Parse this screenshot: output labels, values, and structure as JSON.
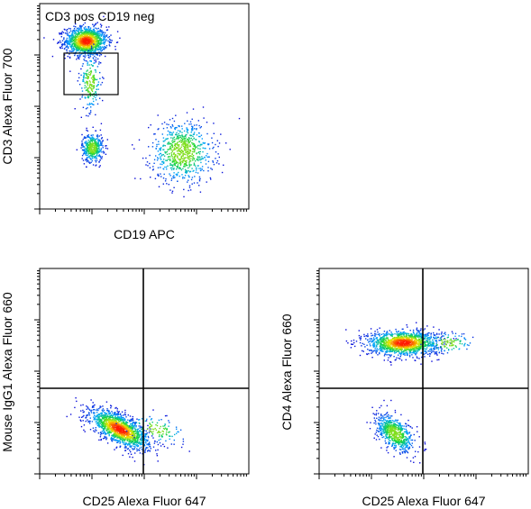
{
  "chart_data": [
    {
      "type": "scatter",
      "plot_kind": "flow-cytometry-density-dot-plot",
      "title": "CD3 pos CD19 neg",
      "xlabel": "CD19 APC",
      "ylabel": "CD3 Alexa Fluor 700",
      "axis_scale": "log",
      "gate": {
        "type": "rectangle",
        "label": "CD3 pos CD19 neg"
      },
      "populations": [
        {
          "x": 0.22,
          "y": 0.82,
          "n": 1300,
          "sx": 0.05,
          "sy": 0.035,
          "hot": true
        },
        {
          "x": 0.24,
          "y": 0.62,
          "n": 220,
          "sx": 0.025,
          "sy": 0.07,
          "hot": false
        },
        {
          "x": 0.25,
          "y": 0.3,
          "n": 420,
          "sx": 0.025,
          "sy": 0.035,
          "hot": false
        },
        {
          "x": 0.68,
          "y": 0.28,
          "n": 750,
          "sx": 0.075,
          "sy": 0.075,
          "hot": false
        }
      ]
    },
    {
      "type": "scatter",
      "plot_kind": "flow-cytometry-density-dot-plot",
      "xlabel": "CD25 Alexa Fluor 647",
      "ylabel": "Mouse IgG1 Alexa Fluor 660",
      "axis_scale": "log",
      "quadrant_gate": true,
      "populations": [
        {
          "x": 0.38,
          "y": 0.22,
          "n": 1500,
          "sx": 0.07,
          "sy": 0.035,
          "tilt": -0.45,
          "hot": true
        },
        {
          "x": 0.55,
          "y": 0.22,
          "n": 120,
          "sx": 0.07,
          "sy": 0.03,
          "tilt": -0.2,
          "hot": false
        }
      ]
    },
    {
      "type": "scatter",
      "plot_kind": "flow-cytometry-density-dot-plot",
      "xlabel": "CD25 Alexa Fluor 647",
      "ylabel": "CD4 Alexa Fluor 660",
      "axis_scale": "log",
      "quadrant_gate": true,
      "populations": [
        {
          "x": 0.4,
          "y": 0.64,
          "n": 1400,
          "sx": 0.085,
          "sy": 0.03,
          "tilt": 0.0,
          "hot": true
        },
        {
          "x": 0.61,
          "y": 0.64,
          "n": 110,
          "sx": 0.06,
          "sy": 0.025,
          "tilt": 0.0,
          "hot": false
        },
        {
          "x": 0.36,
          "y": 0.2,
          "n": 650,
          "sx": 0.045,
          "sy": 0.04,
          "tilt": -0.5,
          "hot": false
        }
      ]
    }
  ]
}
